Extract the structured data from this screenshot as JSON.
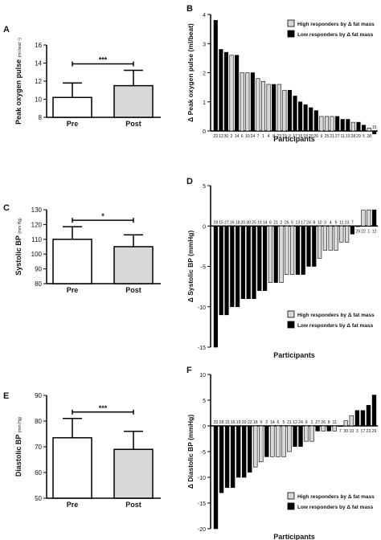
{
  "legend": {
    "high": "High responders by Δ fat mass",
    "low": "Low responders by Δ fat mass"
  },
  "colors": {
    "high": "#d8d8d8",
    "low": "#000000",
    "pre": "#ffffff",
    "post": "#d8d8d8",
    "axis": "#000000"
  },
  "chart_data": [
    {
      "id": "A",
      "panel_label": "A",
      "type": "bar",
      "categories": [
        "Pre",
        "Post"
      ],
      "values": [
        10.2,
        11.5
      ],
      "errors": [
        1.6,
        1.7
      ],
      "ylabel": "Peak oxygen pulse",
      "yunit": "(ml·beat⁻¹)",
      "ylim": [
        8,
        16
      ],
      "yticks": [
        8,
        10,
        12,
        14,
        16
      ],
      "significance": "***"
    },
    {
      "id": "B",
      "panel_label": "B",
      "type": "bar",
      "ylabel": "Δ Peak oxygen pulse (ml/beat)",
      "xlabel": "Participants",
      "ylim": [
        0,
        4
      ],
      "yticks": [
        0,
        1,
        2,
        3,
        4
      ],
      "legend_position": "top-right",
      "participants": [
        "22",
        "12",
        "30",
        "2",
        "14",
        "6",
        "10",
        "24",
        "7",
        "1",
        "4",
        "8",
        "23",
        "19",
        "3",
        "17",
        "16",
        "18",
        "20",
        "26",
        "9",
        "25",
        "21",
        "27",
        "11",
        "13",
        "28",
        "29",
        "5",
        "28",
        "15"
      ],
      "values": [
        3.8,
        2.8,
        2.7,
        2.6,
        2.6,
        2.0,
        2.0,
        2.0,
        1.8,
        1.7,
        1.6,
        1.6,
        1.6,
        1.4,
        1.4,
        1.2,
        1.0,
        0.9,
        0.8,
        0.7,
        0.5,
        0.5,
        0.5,
        0.5,
        0.4,
        0.4,
        0.3,
        0.3,
        0.2,
        0.1,
        -0.1
      ],
      "group": [
        "L",
        "L",
        "L",
        "H",
        "L",
        "H",
        "H",
        "L",
        "H",
        "H",
        "H",
        "L",
        "H",
        "H",
        "L",
        "L",
        "L",
        "L",
        "L",
        "L",
        "H",
        "H",
        "H",
        "L",
        "L",
        "L",
        "H",
        "L",
        "L",
        "H",
        "L"
      ]
    },
    {
      "id": "C",
      "panel_label": "C",
      "type": "bar",
      "categories": [
        "Pre",
        "Post"
      ],
      "values": [
        110,
        105
      ],
      "errors": [
        8.5,
        8.0
      ],
      "ylabel": "Systolic BP",
      "yunit": "(mm Hg)",
      "ylim": [
        80,
        130
      ],
      "yticks": [
        80,
        90,
        100,
        110,
        120,
        130
      ],
      "significance": "*"
    },
    {
      "id": "D",
      "panel_label": "D",
      "type": "bar",
      "ylabel": "Δ Systolic BP (mmHg)",
      "xlabel": "Participants",
      "ylim": [
        -15,
        5
      ],
      "yticks": [
        -15,
        -10,
        -5,
        0,
        5
      ],
      "legend_position": "bottom-right",
      "participants": [
        "28",
        "15",
        "27",
        "16",
        "18",
        "20",
        "30",
        "25",
        "19",
        "14",
        "6",
        "21",
        "2",
        "26",
        "5",
        "13",
        "17",
        "24",
        "8",
        "10",
        "3",
        "4",
        "9",
        "11",
        "23",
        "7",
        "29",
        "22",
        "1",
        "12"
      ],
      "values": [
        -15,
        -11,
        -11,
        -10,
        -10,
        -9,
        -9,
        -9,
        -8,
        -8,
        -7,
        -7,
        -7,
        -6,
        -6,
        -6,
        -6,
        -5,
        -5,
        -4,
        -3,
        -3,
        -3,
        -2,
        -2,
        -1,
        0,
        2,
        2,
        2
      ],
      "group": [
        "L",
        "L",
        "L",
        "L",
        "L",
        "L",
        "L",
        "L",
        "L",
        "L",
        "H",
        "L",
        "H",
        "H",
        "H",
        "L",
        "L",
        "L",
        "L",
        "H",
        "H",
        "H",
        "H",
        "H",
        "H",
        "L",
        "L",
        "H",
        "H",
        "L"
      ]
    },
    {
      "id": "E",
      "panel_label": "E",
      "type": "bar",
      "categories": [
        "Pre",
        "Post"
      ],
      "values": [
        73.5,
        69
      ],
      "errors": [
        7.5,
        7.0
      ],
      "ylabel": "Diastolic BP",
      "yunit": "(mm Hg)",
      "ylim": [
        50,
        90
      ],
      "yticks": [
        50,
        60,
        70,
        80,
        90
      ],
      "significance": "***"
    },
    {
      "id": "F",
      "panel_label": "F",
      "type": "bar",
      "ylabel": "Δ Diastolic BP (mmHg)",
      "xlabel": "Participants",
      "ylim": [
        -20,
        10
      ],
      "yticks": [
        -20,
        -15,
        -10,
        -5,
        0,
        5,
        10
      ],
      "legend_position": "bottom-right",
      "participants": [
        "25",
        "28",
        "15",
        "16",
        "19",
        "20",
        "22",
        "18",
        "9",
        "2",
        "14",
        "6",
        "5",
        "21",
        "12",
        "24",
        "9",
        "1",
        "27",
        "26",
        "8",
        "11",
        "7",
        "30",
        "10",
        "3",
        "17",
        "23",
        "29"
      ],
      "values": [
        -20,
        -13,
        -12,
        -12,
        -10,
        -10,
        -9,
        -8,
        -7,
        -6,
        -6,
        -6,
        -6,
        -5,
        -4,
        -4,
        -3,
        -3,
        -1,
        -1,
        -1,
        -1,
        0,
        1,
        2,
        3,
        3,
        4,
        6
      ],
      "group": [
        "L",
        "L",
        "L",
        "L",
        "L",
        "L",
        "L",
        "H",
        "H",
        "L",
        "H",
        "H",
        "H",
        "H",
        "L",
        "L",
        "H",
        "H",
        "L",
        "H",
        "L",
        "H",
        "L",
        "H",
        "H",
        "L",
        "L",
        "L",
        "L"
      ]
    }
  ]
}
